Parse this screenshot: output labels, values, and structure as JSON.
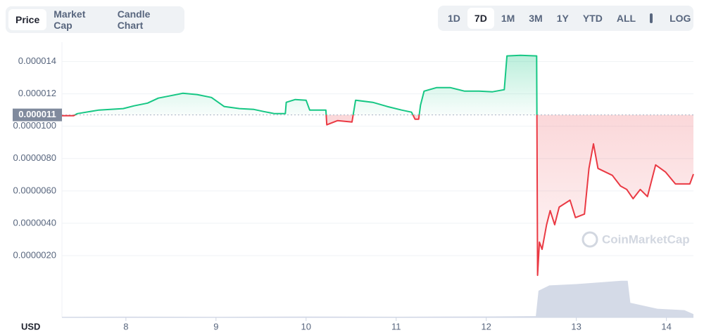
{
  "tabs": [
    "Price",
    "Market Cap",
    "Candle Chart"
  ],
  "ranges": [
    "1D",
    "7D",
    "1M",
    "3M",
    "1Y",
    "YTD",
    "ALL"
  ],
  "log_button": "LOG",
  "currency": "USD",
  "watermark": "CoinMarketCap",
  "chart_data": {
    "type": "line",
    "x": [
      7.29,
      7.42,
      7.46,
      7.7,
      7.97,
      8.09,
      8.24,
      8.36,
      8.48,
      8.63,
      8.79,
      8.95,
      9.09,
      9.26,
      9.42,
      9.53,
      9.65,
      9.77,
      9.78,
      9.88,
      10.0,
      10.04,
      10.22,
      10.23,
      10.35,
      10.51,
      10.55,
      10.74,
      10.9,
      11.06,
      11.17,
      11.21,
      11.25,
      11.27,
      11.31,
      11.45,
      11.6,
      11.76,
      11.92,
      12.07,
      12.2,
      12.23,
      12.38,
      12.56,
      12.57,
      12.59,
      12.62,
      12.67,
      12.71,
      12.76,
      12.81,
      12.93,
      12.99,
      13.09,
      13.14,
      13.19,
      13.24,
      13.4,
      13.49,
      13.56,
      13.63,
      13.71,
      13.79,
      13.88,
      13.99,
      14.1,
      14.26,
      14.3
    ],
    "values": [
      1.065e-05,
      1.065e-05,
      1.078e-05,
      1.1e-05,
      1.109e-05,
      1.126e-05,
      1.143e-05,
      1.174e-05,
      1.187e-05,
      1.204e-05,
      1.196e-05,
      1.178e-05,
      1.122e-05,
      1.109e-05,
      1.104e-05,
      1.091e-05,
      1.078e-05,
      1.078e-05,
      1.148e-05,
      1.165e-05,
      1.161e-05,
      1.1e-05,
      1.1e-05,
      1.009e-05,
      1.035e-05,
      1.026e-05,
      1.161e-05,
      1.148e-05,
      1.122e-05,
      1.1e-05,
      1.087e-05,
      1.043e-05,
      1.043e-05,
      1.13e-05,
      1.217e-05,
      1.239e-05,
      1.239e-05,
      1.217e-05,
      1.217e-05,
      1.213e-05,
      1.226e-05,
      1.435e-05,
      1.439e-05,
      1.435e-05,
      7.8e-07,
      2.83e-06,
      2.39e-06,
      3.91e-06,
      4.78e-06,
      3.91e-06,
      5e-06,
      5.43e-06,
      4.35e-06,
      4.57e-06,
      7.39e-06,
      8.91e-06,
      7.39e-06,
      6.96e-06,
      6.3e-06,
      6.09e-06,
      5.52e-06,
      6.09e-06,
      5.65e-06,
      7.61e-06,
      7.17e-06,
      6.43e-06,
      6.43e-06,
      7.04e-06
    ],
    "up_color": "#16c784",
    "down_color": "#ea3943",
    "reference": {
      "value": 1.07e-05,
      "label": "0.000011"
    },
    "xlim": [
      7.29,
      14.3
    ],
    "xticks": [
      8,
      9,
      10,
      11,
      12,
      13,
      14
    ],
    "ylim": [
      0,
      1.52e-05
    ],
    "yticks": [
      {
        "value": 2e-06,
        "label": "0.0000020"
      },
      {
        "value": 4e-06,
        "label": "0.0000040"
      },
      {
        "value": 6e-06,
        "label": "0.0000060"
      },
      {
        "value": 8e-06,
        "label": "0.0000080"
      },
      {
        "value": 1e-05,
        "label": "0.0000100"
      },
      {
        "value": 1.2e-05,
        "label": "0.000012"
      },
      {
        "value": 1.4e-05,
        "label": "0.000014"
      }
    ],
    "grid": true,
    "volume": {
      "color": "#cfd6e4",
      "x": [
        7.29,
        8.0,
        9.0,
        10.0,
        11.0,
        12.0,
        12.55,
        12.58,
        12.7,
        13.0,
        13.2,
        13.5,
        13.57,
        13.6,
        13.9,
        14.2,
        14.3
      ],
      "values": [
        1,
        1.2,
        1,
        1.3,
        1.1,
        1.5,
        2,
        40,
        48,
        50,
        52,
        55,
        55,
        22,
        13,
        11,
        5
      ]
    },
    "y2lim": [
      0,
      60
    ]
  }
}
